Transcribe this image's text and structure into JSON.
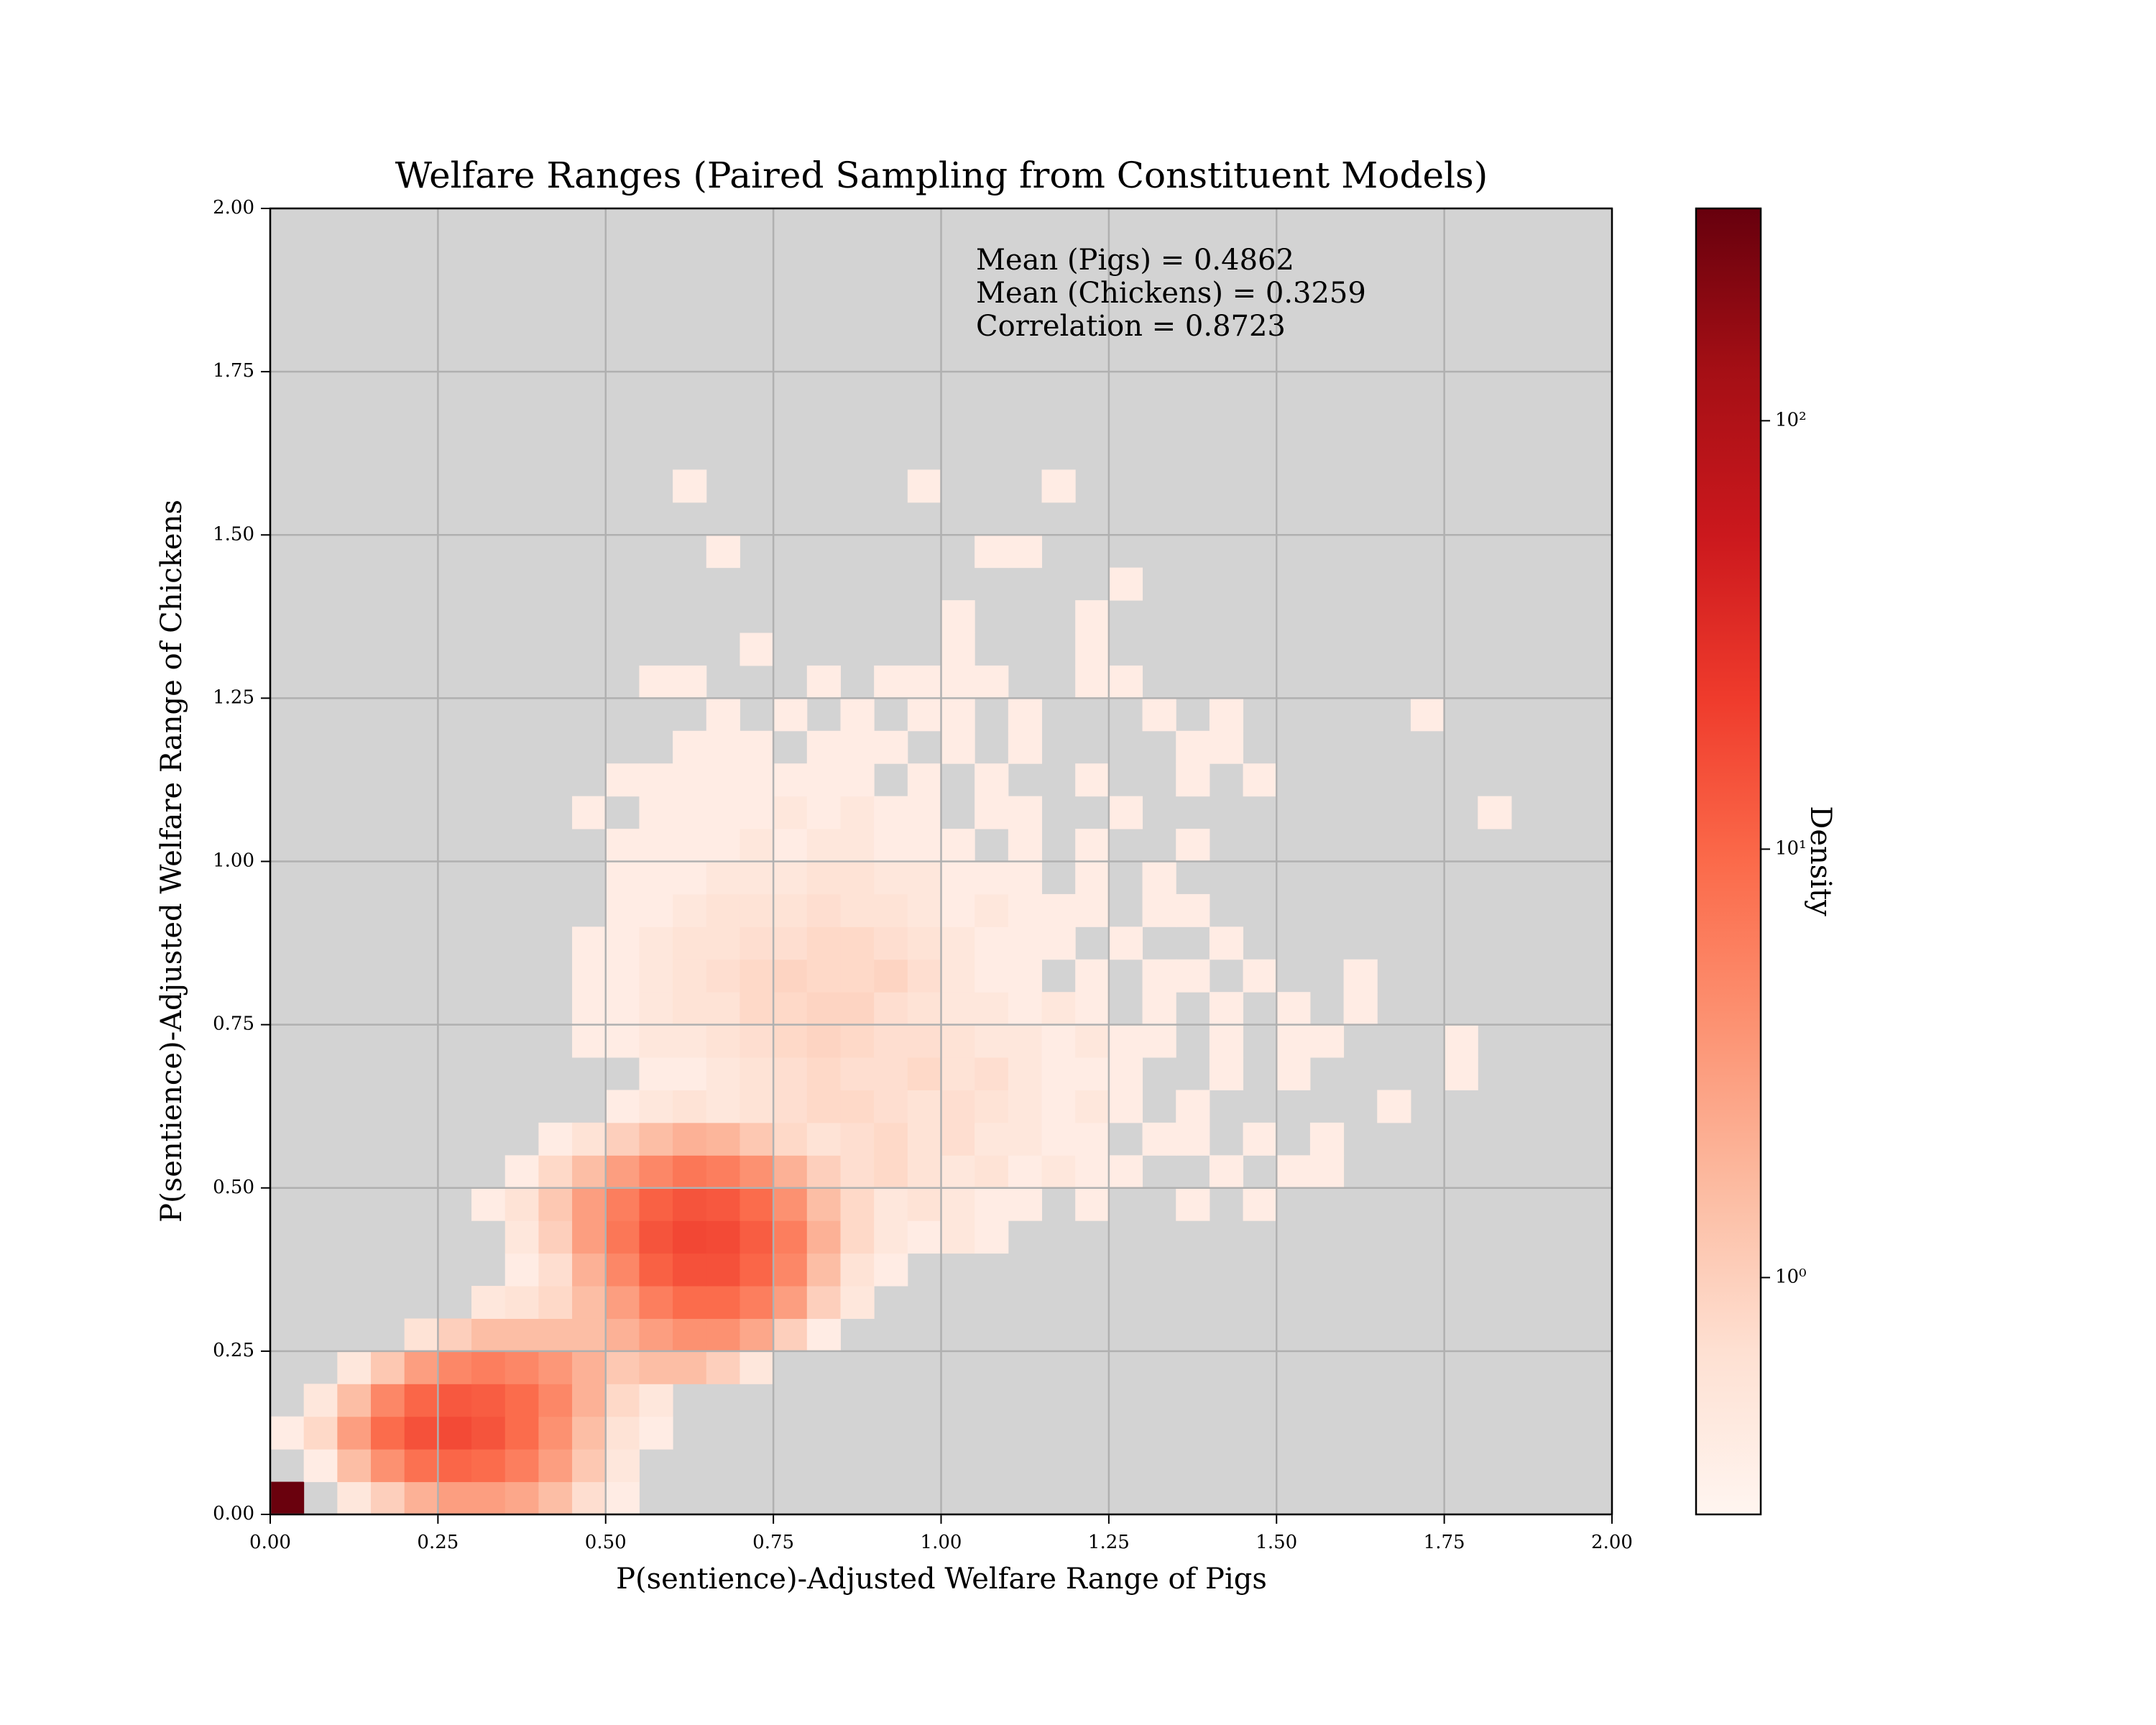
{
  "chart_data": {
    "type": "heatmap2d",
    "title": "Welfare Ranges (Paired Sampling from Constituent Models)",
    "x_label": "P(sentience)-Adjusted Welfare Range of Pigs",
    "y_label": "P(sentience)-Adjusted Welfare Range of Chickens",
    "colorbar_label": "Density",
    "annotations": [
      "Mean (Pigs) = 0.4862",
      "Mean (Chickens) = 0.3259",
      "Correlation = 0.8723"
    ],
    "xlim": [
      0,
      2
    ],
    "ylim": [
      0,
      2
    ],
    "xticks": [
      {
        "value": 0,
        "label": "0.00"
      },
      {
        "value": 0.25,
        "label": "0.25"
      },
      {
        "value": 0.5,
        "label": "0.50"
      },
      {
        "value": 0.75,
        "label": "0.75"
      },
      {
        "value": 1,
        "label": "1.00"
      },
      {
        "value": 1.25,
        "label": "1.25"
      },
      {
        "value": 1.5,
        "label": "1.50"
      },
      {
        "value": 1.75,
        "label": "1.75"
      },
      {
        "value": 2,
        "label": "2.00"
      }
    ],
    "yticks": [
      {
        "value": 0,
        "label": "0.00"
      },
      {
        "value": 0.25,
        "label": "0.25"
      },
      {
        "value": 0.5,
        "label": "0.50"
      },
      {
        "value": 0.75,
        "label": "0.75"
      },
      {
        "value": 1,
        "label": "1.00"
      },
      {
        "value": 1.25,
        "label": "1.25"
      },
      {
        "value": 1.5,
        "label": "1.50"
      },
      {
        "value": 1.75,
        "label": "1.75"
      },
      {
        "value": 2,
        "label": "2.00"
      }
    ],
    "grid": true,
    "facecolor": "#d3d3d3",
    "grid_color": "#b0b0b0",
    "color_scale": "log",
    "clim": [
      0.28,
      313
    ],
    "cticks": [
      {
        "value": 1,
        "label": "10⁰"
      },
      {
        "value": 10,
        "label": "10¹"
      },
      {
        "value": 100,
        "label": "10²"
      }
    ],
    "colormap": [
      "#fff5f0",
      "#fee0d2",
      "#fcbba1",
      "#fc9272",
      "#fb6a4a",
      "#ef3b2c",
      "#cb181d",
      "#a50f15",
      "#67000d"
    ],
    "x_edges": [
      0,
      0.05,
      0.1,
      0.15,
      0.2,
      0.25,
      0.3,
      0.35,
      0.4,
      0.45,
      0.5,
      0.55,
      0.6,
      0.65,
      0.7,
      0.75,
      0.8,
      0.85,
      0.9,
      0.95,
      1,
      1.05,
      1.1,
      1.15,
      1.2,
      1.25,
      1.3,
      1.35,
      1.4,
      1.45,
      1.5,
      1.55,
      1.6,
      1.65,
      1.7,
      1.75,
      1.8,
      1.85
    ],
    "y_edges": [
      0,
      0.05,
      0.1,
      0.15,
      0.2,
      0.25,
      0.3,
      0.35,
      0.4,
      0.45,
      0.5,
      0.55,
      0.6,
      0.65,
      0.7,
      0.75,
      0.8,
      0.85,
      0.9,
      0.95,
      1,
      1.05,
      1.1,
      1.15,
      1.2,
      1.25,
      1.3,
      1.35,
      1.4,
      1.45,
      1.5,
      1.55,
      1.6
    ],
    "z": [
      [
        300,
        null,
        0.5,
        1,
        2,
        3,
        3,
        2.5,
        1.5,
        0.7,
        0.4,
        null,
        null,
        null,
        null,
        null,
        null,
        null,
        null,
        null,
        null,
        null,
        null,
        null,
        null,
        null,
        null,
        null,
        null,
        null,
        null,
        null,
        null,
        null,
        null,
        null,
        null
      ],
      [
        null,
        0.4,
        1.5,
        4,
        8,
        10,
        9,
        6,
        3,
        1.2,
        0.5,
        null,
        null,
        null,
        null,
        null,
        null,
        null,
        null,
        null,
        null,
        null,
        null,
        null,
        null,
        null,
        null,
        null,
        null,
        null,
        null,
        null,
        null,
        null,
        null,
        null,
        null
      ],
      [
        0.4,
        0.8,
        3,
        9,
        15,
        17,
        14,
        9,
        4,
        1.5,
        0.6,
        0.4,
        null,
        null,
        null,
        null,
        null,
        null,
        null,
        null,
        null,
        null,
        null,
        null,
        null,
        null,
        null,
        null,
        null,
        null,
        null,
        null,
        null,
        null,
        null,
        null,
        null
      ],
      [
        null,
        0.5,
        1.5,
        5,
        10,
        13,
        12,
        9,
        5,
        2,
        0.8,
        0.5,
        null,
        null,
        null,
        null,
        null,
        null,
        null,
        null,
        null,
        null,
        null,
        null,
        null,
        null,
        null,
        null,
        null,
        null,
        null,
        null,
        null,
        null,
        null,
        null,
        null
      ],
      [
        null,
        null,
        0.5,
        1.2,
        3,
        5,
        6,
        5,
        3.5,
        2,
        1.2,
        1.5,
        1.5,
        1,
        0.5,
        null,
        null,
        null,
        null,
        null,
        null,
        null,
        null,
        null,
        null,
        null,
        null,
        null,
        null,
        null,
        null,
        null,
        null,
        null,
        null,
        null,
        null
      ],
      [
        null,
        null,
        null,
        null,
        0.6,
        1,
        1.5,
        1.5,
        1.5,
        1.5,
        2,
        3,
        4,
        4,
        2.5,
        1,
        0.4,
        null,
        null,
        null,
        null,
        null,
        null,
        null,
        null,
        null,
        null,
        null,
        null,
        null,
        null,
        null,
        null,
        null,
        null,
        null,
        null
      ],
      [
        null,
        null,
        null,
        null,
        null,
        null,
        0.5,
        0.6,
        0.8,
        1.5,
        3,
        6,
        9,
        9,
        6,
        3,
        1,
        0.5,
        null,
        null,
        null,
        null,
        null,
        null,
        null,
        null,
        null,
        null,
        null,
        null,
        null,
        null,
        null,
        null,
        null,
        null,
        null
      ],
      [
        null,
        null,
        null,
        null,
        null,
        null,
        null,
        0.4,
        0.7,
        2,
        5,
        11,
        15,
        15,
        10,
        5,
        1.5,
        0.6,
        0.4,
        null,
        null,
        null,
        null,
        null,
        null,
        null,
        null,
        null,
        null,
        null,
        null,
        null,
        null,
        null,
        null,
        null,
        null
      ],
      [
        null,
        null,
        null,
        null,
        null,
        null,
        null,
        0.5,
        1,
        3,
        7,
        14,
        18,
        17,
        12,
        6,
        2,
        0.8,
        0.5,
        0.4,
        0.5,
        0.4,
        null,
        null,
        null,
        null,
        null,
        null,
        null,
        null,
        null,
        null,
        null,
        null,
        null,
        null,
        null
      ],
      [
        null,
        null,
        null,
        null,
        null,
        null,
        0.4,
        0.6,
        1.2,
        3,
        6,
        11,
        14,
        13,
        9,
        4,
        1.5,
        0.8,
        0.5,
        0.6,
        0.5,
        0.4,
        0.4,
        null,
        0.4,
        null,
        null,
        0.4,
        null,
        0.4,
        null,
        null,
        null,
        null,
        null,
        null,
        null
      ],
      [
        null,
        null,
        null,
        null,
        null,
        null,
        null,
        0.4,
        0.8,
        1.5,
        3,
        5,
        7,
        6,
        4,
        2,
        1,
        0.7,
        0.8,
        0.6,
        0.5,
        0.6,
        0.4,
        0.5,
        0.4,
        0.4,
        null,
        null,
        0.4,
        null,
        0.4,
        0.4,
        null,
        null,
        null,
        null,
        null
      ],
      [
        null,
        null,
        null,
        null,
        null,
        null,
        null,
        null,
        0.4,
        0.6,
        1,
        1.5,
        2,
        1.8,
        1.2,
        0.8,
        0.6,
        0.7,
        0.8,
        0.6,
        0.7,
        0.5,
        0.5,
        0.4,
        0.4,
        null,
        0.4,
        0.4,
        null,
        0.4,
        null,
        0.4,
        null,
        null,
        null,
        null,
        null
      ],
      [
        null,
        null,
        null,
        null,
        null,
        null,
        null,
        null,
        null,
        null,
        0.4,
        0.5,
        0.6,
        0.5,
        0.6,
        0.7,
        0.8,
        0.8,
        0.7,
        0.6,
        0.7,
        0.6,
        0.5,
        0.4,
        0.5,
        0.4,
        null,
        0.4,
        null,
        null,
        null,
        null,
        null,
        0.4,
        null,
        null,
        null
      ],
      [
        null,
        null,
        null,
        null,
        null,
        null,
        null,
        null,
        null,
        null,
        null,
        0.4,
        0.4,
        0.5,
        0.6,
        0.7,
        0.8,
        0.7,
        0.7,
        0.8,
        0.6,
        0.7,
        0.5,
        0.4,
        0.4,
        0.4,
        null,
        null,
        0.4,
        null,
        0.4,
        null,
        null,
        null,
        null,
        0.4,
        null
      ],
      [
        null,
        null,
        null,
        null,
        null,
        null,
        null,
        null,
        null,
        0.4,
        0.4,
        0.5,
        0.5,
        0.6,
        0.7,
        0.8,
        0.9,
        0.8,
        0.7,
        0.7,
        0.6,
        0.5,
        0.5,
        0.4,
        0.5,
        0.4,
        0.4,
        null,
        0.4,
        null,
        0.4,
        0.4,
        null,
        null,
        null,
        0.4,
        null
      ],
      [
        null,
        null,
        null,
        null,
        null,
        null,
        null,
        null,
        null,
        0.4,
        0.4,
        0.5,
        0.6,
        0.6,
        0.8,
        0.8,
        0.9,
        0.9,
        0.7,
        0.6,
        0.5,
        0.5,
        0.4,
        0.5,
        0.4,
        null,
        0.4,
        null,
        0.4,
        null,
        0.4,
        null,
        0.4,
        null,
        null,
        null,
        null
      ],
      [
        null,
        null,
        null,
        null,
        null,
        null,
        null,
        null,
        null,
        0.4,
        0.4,
        0.5,
        0.6,
        0.7,
        0.8,
        0.9,
        0.8,
        0.8,
        0.9,
        0.7,
        0.5,
        0.4,
        0.4,
        null,
        0.4,
        null,
        0.4,
        0.4,
        null,
        0.4,
        null,
        null,
        0.4,
        null,
        null,
        null,
        null
      ],
      [
        null,
        null,
        null,
        null,
        null,
        null,
        null,
        null,
        null,
        0.4,
        0.4,
        0.5,
        0.6,
        0.6,
        0.7,
        0.7,
        0.8,
        0.8,
        0.7,
        0.6,
        0.5,
        0.4,
        0.4,
        0.4,
        null,
        0.4,
        null,
        null,
        0.4,
        null,
        null,
        null,
        null,
        null,
        null,
        null,
        null
      ],
      [
        null,
        null,
        null,
        null,
        null,
        null,
        null,
        null,
        null,
        null,
        0.4,
        0.4,
        0.5,
        0.6,
        0.6,
        0.6,
        0.7,
        0.6,
        0.6,
        0.5,
        0.4,
        0.5,
        0.4,
        0.4,
        0.4,
        null,
        0.4,
        0.4,
        null,
        null,
        null,
        null,
        null,
        null,
        null,
        null,
        null
      ],
      [
        null,
        null,
        null,
        null,
        null,
        null,
        null,
        null,
        null,
        null,
        0.4,
        0.4,
        0.4,
        0.5,
        0.5,
        0.5,
        0.6,
        0.6,
        0.5,
        0.5,
        0.4,
        0.4,
        0.4,
        null,
        0.4,
        null,
        0.4,
        null,
        null,
        null,
        null,
        null,
        null,
        null,
        null,
        null,
        null
      ],
      [
        null,
        null,
        null,
        null,
        null,
        null,
        null,
        null,
        null,
        null,
        0.4,
        0.4,
        0.4,
        0.4,
        0.5,
        0.4,
        0.5,
        0.5,
        0.4,
        0.4,
        0.4,
        null,
        0.4,
        null,
        0.4,
        null,
        null,
        0.4,
        null,
        null,
        null,
        null,
        null,
        null,
        null,
        null,
        null
      ],
      [
        null,
        null,
        null,
        null,
        null,
        null,
        null,
        null,
        null,
        0.4,
        null,
        0.4,
        0.4,
        0.4,
        0.4,
        0.5,
        0.4,
        0.5,
        0.4,
        0.4,
        null,
        0.4,
        0.4,
        null,
        null,
        0.4,
        null,
        null,
        null,
        null,
        null,
        null,
        null,
        null,
        null,
        null,
        0.4
      ],
      [
        null,
        null,
        null,
        null,
        null,
        null,
        null,
        null,
        null,
        null,
        0.4,
        0.4,
        0.4,
        0.4,
        0.4,
        0.4,
        0.4,
        0.4,
        null,
        0.4,
        null,
        0.4,
        null,
        null,
        0.4,
        null,
        null,
        0.4,
        null,
        0.4,
        null,
        null,
        null,
        null,
        null,
        null,
        null
      ],
      [
        null,
        null,
        null,
        null,
        null,
        null,
        null,
        null,
        null,
        null,
        null,
        null,
        0.4,
        0.4,
        0.4,
        null,
        0.4,
        0.4,
        0.4,
        null,
        0.4,
        null,
        0.4,
        null,
        null,
        null,
        null,
        0.4,
        0.4,
        null,
        null,
        null,
        null,
        null,
        null,
        null,
        null
      ],
      [
        null,
        null,
        null,
        null,
        null,
        null,
        null,
        null,
        null,
        null,
        null,
        null,
        null,
        0.4,
        null,
        0.4,
        null,
        0.4,
        null,
        0.4,
        0.4,
        null,
        0.4,
        null,
        null,
        null,
        0.4,
        null,
        0.4,
        null,
        null,
        null,
        null,
        null,
        0.4,
        null,
        null
      ],
      [
        null,
        null,
        null,
        null,
        null,
        null,
        null,
        null,
        null,
        null,
        null,
        0.4,
        0.4,
        null,
        null,
        null,
        0.4,
        null,
        0.4,
        0.4,
        0.4,
        0.4,
        null,
        null,
        0.4,
        0.4,
        null,
        null,
        null,
        null,
        null,
        null,
        null,
        null,
        null,
        null,
        null
      ],
      [
        null,
        null,
        null,
        null,
        null,
        null,
        null,
        null,
        null,
        null,
        null,
        null,
        null,
        null,
        0.4,
        null,
        null,
        null,
        null,
        null,
        0.4,
        null,
        null,
        null,
        0.4,
        null,
        null,
        null,
        null,
        null,
        null,
        null,
        null,
        null,
        null,
        null,
        null
      ],
      [
        null,
        null,
        null,
        null,
        null,
        null,
        null,
        null,
        null,
        null,
        null,
        null,
        null,
        null,
        null,
        null,
        null,
        null,
        null,
        null,
        0.4,
        null,
        null,
        null,
        0.4,
        null,
        null,
        null,
        null,
        null,
        null,
        null,
        null,
        null,
        null,
        null,
        null
      ],
      [
        null,
        null,
        null,
        null,
        null,
        null,
        null,
        null,
        null,
        null,
        null,
        null,
        null,
        null,
        null,
        null,
        null,
        null,
        null,
        null,
        null,
        null,
        null,
        null,
        null,
        0.4,
        null,
        null,
        null,
        null,
        null,
        null,
        null,
        null,
        null,
        null,
        null
      ],
      [
        null,
        null,
        null,
        null,
        null,
        null,
        null,
        null,
        null,
        null,
        null,
        null,
        null,
        0.4,
        null,
        null,
        null,
        null,
        null,
        null,
        null,
        0.4,
        0.4,
        null,
        null,
        null,
        null,
        null,
        null,
        null,
        null,
        null,
        null,
        null,
        null,
        null,
        null
      ],
      [
        null,
        null,
        null,
        null,
        null,
        null,
        null,
        null,
        null,
        null,
        null,
        null,
        null,
        null,
        null,
        null,
        null,
        null,
        null,
        null,
        null,
        null,
        null,
        null,
        null,
        null,
        null,
        null,
        null,
        null,
        null,
        null,
        null,
        null,
        null,
        null,
        null
      ],
      [
        null,
        null,
        null,
        null,
        null,
        null,
        null,
        null,
        null,
        null,
        null,
        null,
        0.4,
        null,
        null,
        null,
        null,
        null,
        null,
        0.4,
        null,
        null,
        null,
        0.4,
        null,
        null,
        null,
        null,
        null,
        null,
        null,
        null,
        null,
        null,
        null,
        null,
        null
      ]
    ]
  }
}
